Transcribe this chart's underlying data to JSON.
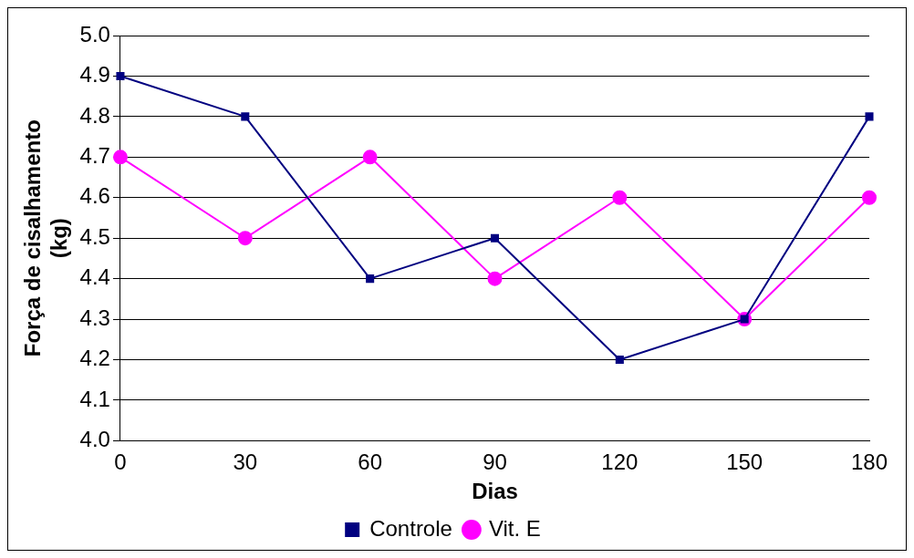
{
  "chart_data": {
    "type": "line",
    "xlabel": "Dias",
    "ylabel": "Força de cisalhamento (kg)",
    "categories": [
      "0",
      "30",
      "60",
      "90",
      "120",
      "150",
      "180"
    ],
    "series": [
      {
        "name": "Controle",
        "color": "#000080",
        "marker": "square",
        "values": [
          4.9,
          4.8,
          4.4,
          4.5,
          4.2,
          4.3,
          4.8
        ]
      },
      {
        "name": "Vit. E",
        "color": "#ff00ff",
        "marker": "circle",
        "values": [
          4.7,
          4.5,
          4.7,
          4.4,
          4.6,
          4.3,
          4.6
        ]
      }
    ],
    "ylim": [
      4.0,
      5.0
    ],
    "yticks": [
      {
        "value": 4,
        "label": "4.0"
      },
      4.1,
      4.2,
      4.3,
      4.4,
      4.5,
      4.6,
      4.7,
      4.8,
      4.9,
      {
        "value": 5,
        "label": "5.0"
      }
    ],
    "grid": "y",
    "legend": "bottom",
    "line_style": "solid"
  }
}
